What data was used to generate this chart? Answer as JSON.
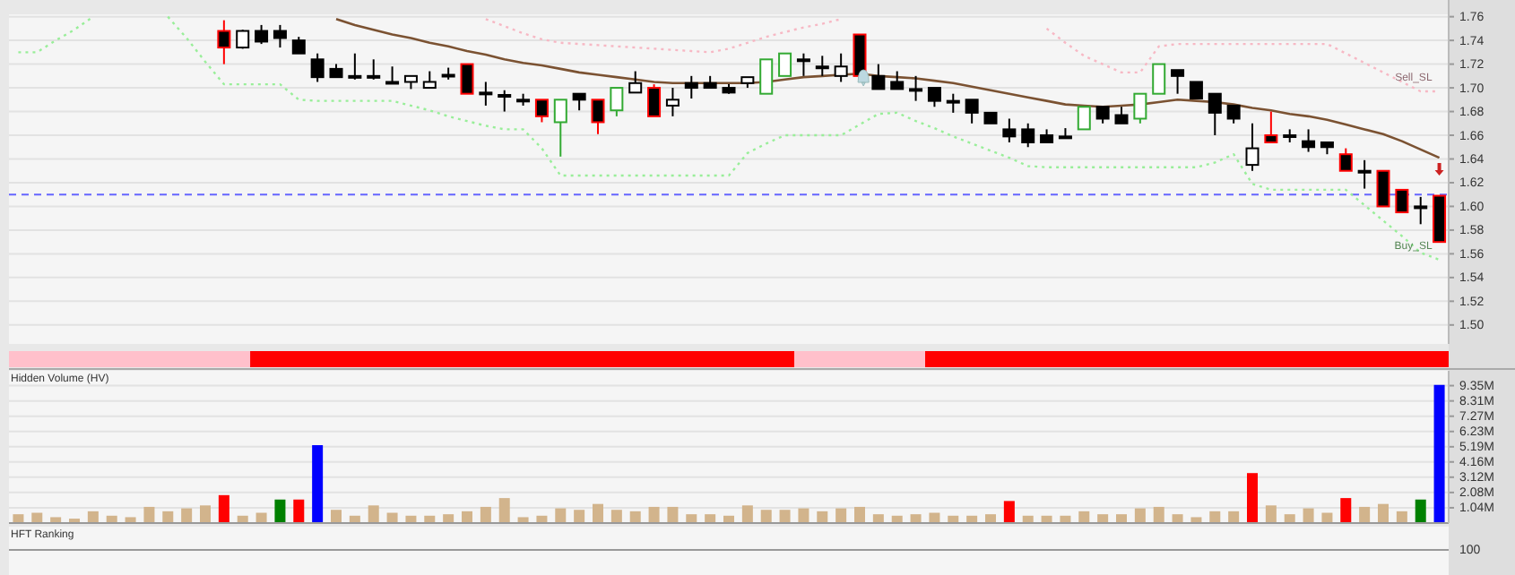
{
  "chart_data": [
    {
      "type": "candlestick",
      "categories": [
        null,
        null,
        null,
        null,
        null,
        null,
        null,
        null,
        null,
        null,
        null,
        null,
        null,
        null,
        null,
        null,
        null,
        null,
        null,
        null,
        null,
        null,
        null,
        null,
        null,
        null,
        null,
        null,
        null,
        null,
        null,
        null,
        null,
        null,
        null,
        null,
        null,
        null,
        null,
        null,
        null,
        null,
        null,
        null,
        null,
        null,
        null,
        null,
        null,
        null,
        null,
        null,
        null,
        null,
        null,
        null,
        null,
        null,
        null,
        null,
        null,
        null,
        null,
        null,
        null,
        null,
        null,
        null,
        null,
        null,
        null,
        null,
        null,
        null,
        null,
        null,
        null
      ],
      "ylim": [
        1.484,
        1.762
      ],
      "grid": "y",
      "tick_labels": "y",
      "yticks": [
        {
          "value": 1.5,
          "label": "1.50"
        },
        {
          "value": 1.52,
          "label": "1.52"
        },
        {
          "value": 1.54,
          "label": "1.54"
        },
        {
          "value": 1.56,
          "label": "1.56"
        },
        {
          "value": 1.58,
          "label": "1.58"
        },
        {
          "value": 1.6,
          "label": "1.60"
        },
        {
          "value": 1.62,
          "label": "1.62"
        },
        {
          "value": 1.64,
          "label": "1.64"
        },
        {
          "value": 1.66,
          "label": "1.66"
        },
        {
          "value": 1.68,
          "label": "1.68"
        },
        {
          "value": 1.7,
          "label": "1.70"
        },
        {
          "value": 1.72,
          "label": "1.72"
        },
        {
          "value": 1.74,
          "label": "1.74"
        },
        {
          "value": 1.76,
          "label": "1.76"
        }
      ],
      "ohlc": [
        null,
        null,
        null,
        null,
        null,
        null,
        null,
        null,
        null,
        null,
        null,
        [
          1.748,
          1.757,
          1.72,
          1.734
        ],
        [
          1.734,
          1.749,
          1.733,
          1.748
        ],
        [
          1.748,
          1.753,
          1.737,
          1.739
        ],
        [
          1.748,
          1.753,
          1.734,
          1.742
        ],
        [
          1.74,
          1.743,
          1.729,
          1.729
        ],
        [
          1.724,
          1.729,
          1.705,
          1.709
        ],
        [
          1.716,
          1.72,
          1.709,
          1.709
        ],
        [
          1.71,
          1.729,
          1.707,
          1.709
        ],
        [
          1.71,
          1.724,
          1.707,
          1.709
        ],
        [
          1.705,
          1.718,
          1.705,
          1.705
        ],
        [
          1.705,
          1.71,
          1.699,
          1.71
        ],
        [
          1.7,
          1.714,
          1.7,
          1.705
        ],
        [
          1.711,
          1.717,
          1.707,
          1.711
        ],
        [
          1.72,
          1.72,
          1.695,
          1.695
        ],
        [
          1.696,
          1.705,
          1.685,
          1.696
        ],
        [
          1.694,
          1.698,
          1.68,
          1.694
        ],
        [
          1.69,
          1.695,
          1.685,
          1.69
        ],
        [
          1.69,
          1.69,
          1.671,
          1.676
        ],
        [
          1.671,
          1.69,
          1.642,
          1.69
        ],
        [
          1.695,
          1.695,
          1.681,
          1.69
        ],
        [
          1.69,
          1.69,
          1.661,
          1.671
        ],
        [
          1.681,
          1.7,
          1.676,
          1.7
        ],
        [
          1.696,
          1.714,
          1.696,
          1.704
        ],
        [
          1.7,
          1.703,
          1.676,
          1.676
        ],
        [
          1.685,
          1.7,
          1.676,
          1.69
        ],
        [
          1.704,
          1.71,
          1.691,
          1.7
        ],
        [
          1.704,
          1.71,
          1.7,
          1.7
        ],
        [
          1.7,
          1.703,
          1.695,
          1.696
        ],
        [
          1.704,
          1.709,
          1.7,
          1.709
        ],
        [
          1.695,
          1.724,
          1.695,
          1.724
        ],
        [
          1.71,
          1.729,
          1.71,
          1.729
        ],
        [
          1.724,
          1.729,
          1.71,
          1.724
        ],
        [
          1.718,
          1.727,
          1.71,
          1.718
        ],
        [
          1.71,
          1.729,
          1.705,
          1.718
        ],
        [
          1.745,
          1.745,
          1.71,
          1.71
        ],
        [
          1.71,
          1.72,
          1.699,
          1.699
        ],
        [
          1.705,
          1.714,
          1.699,
          1.699
        ],
        [
          1.699,
          1.71,
          1.689,
          1.699
        ],
        [
          1.7,
          1.7,
          1.684,
          1.689
        ],
        [
          1.689,
          1.695,
          1.679,
          1.689
        ],
        [
          1.69,
          1.69,
          1.67,
          1.679
        ],
        [
          1.679,
          1.679,
          1.67,
          1.67
        ],
        [
          1.665,
          1.674,
          1.654,
          1.659
        ],
        [
          1.665,
          1.67,
          1.65,
          1.654
        ],
        [
          1.66,
          1.665,
          1.654,
          1.654
        ],
        [
          1.659,
          1.666,
          1.659,
          1.659
        ],
        [
          1.665,
          1.684,
          1.665,
          1.684
        ],
        [
          1.684,
          1.684,
          1.67,
          1.674
        ],
        [
          1.677,
          1.684,
          1.67,
          1.67
        ],
        [
          1.674,
          1.695,
          1.67,
          1.695
        ],
        [
          1.695,
          1.72,
          1.695,
          1.72
        ],
        [
          1.715,
          1.715,
          1.695,
          1.71
        ],
        [
          1.705,
          1.705,
          1.691,
          1.691
        ],
        [
          1.695,
          1.695,
          1.66,
          1.679
        ],
        [
          1.685,
          1.685,
          1.67,
          1.674
        ],
        [
          1.635,
          1.67,
          1.63,
          1.649
        ],
        [
          1.66,
          1.68,
          1.654,
          1.654
        ],
        [
          1.66,
          1.665,
          1.654,
          1.66
        ],
        [
          1.655,
          1.665,
          1.646,
          1.65
        ],
        [
          1.654,
          1.654,
          1.644,
          1.65
        ],
        [
          1.644,
          1.649,
          1.63,
          1.63
        ],
        [
          1.63,
          1.639,
          1.615,
          1.63
        ],
        [
          1.63,
          1.63,
          1.6,
          1.6
        ],
        [
          1.614,
          1.614,
          1.595,
          1.595
        ],
        [
          1.6,
          1.608,
          1.585,
          1.6
        ],
        [
          1.609,
          1.609,
          1.57,
          1.57
        ]
      ],
      "colors": [
        null,
        null,
        null,
        null,
        null,
        null,
        null,
        null,
        null,
        null,
        null,
        "#ff0000",
        "#000000",
        "#000000",
        "#000000",
        "#000000",
        "#000000",
        "#000000",
        "#000000",
        "#000000",
        "#000000",
        "#000000",
        "#000000",
        "#000000",
        "#ff0000",
        "#000000",
        "#000000",
        "#000000",
        "#ff0000",
        "#33aa33",
        "#000000",
        "#ff0000",
        "#33aa33",
        "#000000",
        "#ff0000",
        "#000000",
        "#000000",
        "#000000",
        "#000000",
        "#000000",
        "#33aa33",
        "#33aa33",
        "#000000",
        "#000000",
        "#000000",
        "#ff0000",
        "#000000",
        "#000000",
        "#000000",
        "#000000",
        "#000000",
        "#000000",
        "#000000",
        "#000000",
        "#000000",
        "#000000",
        "#000000",
        "#33aa33",
        "#000000",
        "#000000",
        "#33aa33",
        "#33aa33",
        "#000000",
        "#000000",
        "#000000",
        "#000000",
        "#000000",
        "#ff0000",
        "#000000",
        "#000000",
        "#000000",
        "#ff0000",
        "#000000",
        "#ff0000",
        "#ff0000",
        "#000000",
        "#ff0000"
      ],
      "series": [
        {
          "type": "line",
          "color": "#7b5232",
          "line_style": "solid",
          "values": [
            null,
            null,
            null,
            null,
            null,
            null,
            null,
            null,
            null,
            null,
            null,
            null,
            null,
            null,
            null,
            null,
            null,
            1.758,
            1.753,
            1.749,
            1.745,
            1.742,
            1.738,
            1.735,
            1.731,
            1.728,
            1.724,
            1.721,
            1.719,
            1.716,
            1.713,
            1.711,
            1.709,
            1.707,
            1.705,
            1.704,
            1.704,
            1.704,
            1.704,
            1.704,
            1.705,
            1.707,
            1.709,
            1.71,
            1.711,
            1.712,
            1.71,
            1.709,
            1.708,
            1.706,
            1.704,
            1.701,
            1.698,
            1.695,
            1.692,
            1.689,
            1.686,
            1.685,
            1.684,
            1.685,
            1.686,
            1.688,
            1.69,
            1.689,
            1.688,
            1.686,
            1.683,
            1.681,
            1.678,
            1.676,
            1.673,
            1.669,
            1.665,
            1.661,
            1.655,
            1.648,
            1.641
          ]
        },
        {
          "type": "line",
          "color": "#f7b8c4",
          "line_style": "dotted",
          "values": [
            null,
            null,
            null,
            null,
            null,
            null,
            null,
            null,
            null,
            null,
            null,
            null,
            null,
            null,
            null,
            null,
            null,
            null,
            null,
            null,
            null,
            null,
            null,
            null,
            null,
            1.758,
            1.752,
            1.746,
            1.741,
            1.738,
            1.737,
            1.736,
            1.735,
            1.734,
            1.733,
            1.732,
            1.731,
            1.73,
            1.733,
            1.738,
            1.743,
            1.747,
            1.751,
            1.754,
            1.758,
            null,
            null,
            null,
            null,
            null,
            null,
            null,
            null,
            null,
            null,
            1.75,
            1.738,
            1.727,
            1.72,
            1.713,
            1.713,
            1.735,
            1.737,
            1.737,
            1.737,
            1.737,
            1.737,
            1.737,
            1.737,
            1.737,
            1.737,
            1.729,
            1.721,
            1.713,
            1.705,
            1.697,
            1.697
          ]
        },
        {
          "type": "line",
          "color": "#99ee99",
          "line_style": "dotted",
          "values": [
            1.73,
            1.73,
            1.74,
            1.749,
            1.76,
            null,
            null,
            null,
            1.76,
            1.742,
            1.722,
            1.703,
            1.703,
            1.703,
            1.703,
            1.69,
            1.689,
            1.689,
            1.689,
            1.689,
            1.689,
            1.685,
            1.681,
            1.676,
            1.672,
            1.668,
            1.665,
            1.665,
            1.649,
            1.626,
            1.626,
            1.626,
            1.626,
            1.626,
            1.626,
            1.626,
            1.626,
            1.626,
            1.626,
            1.645,
            1.653,
            1.66,
            1.66,
            1.66,
            1.66,
            1.669,
            1.678,
            1.679,
            1.672,
            1.666,
            1.659,
            1.653,
            1.647,
            1.641,
            1.634,
            1.633,
            1.633,
            1.633,
            1.633,
            1.633,
            1.633,
            1.633,
            1.633,
            1.633,
            1.637,
            1.644,
            1.619,
            1.614,
            1.614,
            1.614,
            1.614,
            1.614,
            1.601,
            1.588,
            1.575,
            1.561,
            1.555
          ]
        }
      ],
      "ref_lines": [
        {
          "axis": "y",
          "value": 1.61,
          "color": "#6666ff",
          "line_style": "dashed"
        }
      ],
      "annotations": [
        "Sell_SL",
        "Buy_SL"
      ]
    },
    {
      "type": "bar",
      "title": "Hidden Volume (HV)",
      "categories": [
        null,
        null,
        null,
        null,
        null,
        null,
        null,
        null,
        null,
        null,
        null,
        null,
        null,
        null,
        null,
        null,
        null,
        null,
        null,
        null,
        null,
        null,
        null,
        null,
        null,
        null,
        null,
        null,
        null,
        null,
        null,
        null,
        null,
        null,
        null,
        null,
        null,
        null,
        null,
        null,
        null,
        null,
        null,
        null,
        null,
        null,
        null,
        null,
        null,
        null,
        null,
        null,
        null,
        null,
        null,
        null,
        null,
        null,
        null,
        null,
        null,
        null,
        null,
        null,
        null,
        null,
        null,
        null,
        null,
        null,
        null,
        null,
        null,
        null,
        null,
        null,
        null
      ],
      "ylim": [
        0,
        10.36
      ],
      "grid": "y",
      "tick_labels": "y",
      "yticks": [
        {
          "value": 1.04,
          "label": "1.04M"
        },
        {
          "value": 2.08,
          "label": "2.08M"
        },
        {
          "value": 3.12,
          "label": "3.12M"
        },
        {
          "value": 4.16,
          "label": "4.16M"
        },
        {
          "value": 5.19,
          "label": "5.19M"
        },
        {
          "value": 6.23,
          "label": "6.23M"
        },
        {
          "value": 7.27,
          "label": "7.27M"
        },
        {
          "value": 8.31,
          "label": "8.31M"
        },
        {
          "value": 9.35,
          "label": "9.35M"
        }
      ],
      "values": [
        0.6,
        0.7,
        0.4,
        0.3,
        0.8,
        0.5,
        0.4,
        1.1,
        0.8,
        1.0,
        1.2,
        1.9,
        0.5,
        0.7,
        1.6,
        1.6,
        5.3,
        0.9,
        0.5,
        1.2,
        0.7,
        0.5,
        0.5,
        0.6,
        0.8,
        1.1,
        1.7,
        0.4,
        0.5,
        1.0,
        0.9,
        1.3,
        0.9,
        0.8,
        1.1,
        1.1,
        0.6,
        0.6,
        0.5,
        1.2,
        0.9,
        0.9,
        1.0,
        0.8,
        1.0,
        1.1,
        0.6,
        0.5,
        0.6,
        0.7,
        0.5,
        0.5,
        0.6,
        1.5,
        0.5,
        0.5,
        0.5,
        0.8,
        0.6,
        0.6,
        1.0,
        1.1,
        0.6,
        0.4,
        0.8,
        0.8,
        3.4,
        1.2,
        0.6,
        1.0,
        0.7,
        1.7,
        1.1,
        1.3,
        0.8,
        1.6,
        9.4
      ],
      "colors": [
        "#d2b48c",
        "#d2b48c",
        "#d2b48c",
        "#d2b48c",
        "#d2b48c",
        "#d2b48c",
        "#d2b48c",
        "#d2b48c",
        "#d2b48c",
        "#d2b48c",
        "#d2b48c",
        "#ff0000",
        "#d2b48c",
        "#d2b48c",
        "#008000",
        "#ff0000",
        "#0000ff",
        "#d2b48c",
        "#d2b48c",
        "#d2b48c",
        "#d2b48c",
        "#d2b48c",
        "#d2b48c",
        "#d2b48c",
        "#d2b48c",
        "#d2b48c",
        "#d2b48c",
        "#d2b48c",
        "#d2b48c",
        "#d2b48c",
        "#d2b48c",
        "#d2b48c",
        "#d2b48c",
        "#d2b48c",
        "#d2b48c",
        "#d2b48c",
        "#d2b48c",
        "#d2b48c",
        "#d2b48c",
        "#d2b48c",
        "#d2b48c",
        "#d2b48c",
        "#d2b48c",
        "#d2b48c",
        "#d2b48c",
        "#d2b48c",
        "#d2b48c",
        "#d2b48c",
        "#d2b48c",
        "#d2b48c",
        "#d2b48c",
        "#d2b48c",
        "#d2b48c",
        "#ff0000",
        "#d2b48c",
        "#d2b48c",
        "#d2b48c",
        "#d2b48c",
        "#d2b48c",
        "#d2b48c",
        "#d2b48c",
        "#d2b48c",
        "#d2b48c",
        "#d2b48c",
        "#d2b48c",
        "#d2b48c",
        "#ff0000",
        "#d2b48c",
        "#d2b48c",
        "#d2b48c",
        "#d2b48c",
        "#ff0000",
        "#d2b48c",
        "#d2b48c",
        "#d2b48c",
        "#008000",
        "#0000ff"
      ]
    },
    {
      "type": "other",
      "title": "HFT Ranking",
      "annotations": [
        "100"
      ]
    }
  ]
}
